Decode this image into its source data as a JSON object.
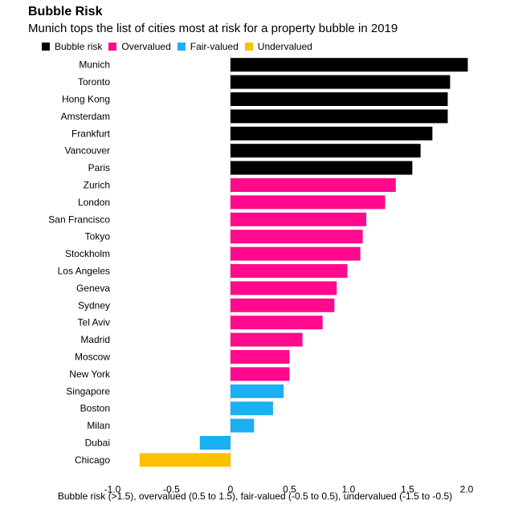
{
  "chart_data": {
    "type": "bar",
    "orientation": "horizontal",
    "title": "Bubble Risk",
    "subtitle": "Munich tops the list of cities most at risk for a property bubble in 2019",
    "xlabel": "Bubble risk (>1.5), overvalued (0.5 to 1.5), fair-valued (-0.5 to 0.5), undervalued (-1.5 to -0.5)",
    "xlim": [
      -1.0,
      2.0
    ],
    "xticks": [
      "-1.0",
      "-0.5",
      "0",
      "0.5",
      "1.0",
      "1.5",
      "2.0"
    ],
    "xtick_values": [
      -1.0,
      -0.5,
      0,
      0.5,
      1.0,
      1.5,
      2.0
    ],
    "legend": [
      {
        "label": "Bubble risk",
        "color": "#000000"
      },
      {
        "label": "Overvalued",
        "color": "#ff0a8c"
      },
      {
        "label": "Fair-valued",
        "color": "#1bb0f0"
      },
      {
        "label": "Undervalued",
        "color": "#fcc000"
      }
    ],
    "categories": [
      "Munich",
      "Toronto",
      "Hong Kong",
      "Amsterdam",
      "Frankfurt",
      "Vancouver",
      "Paris",
      "Zurich",
      "London",
      "San Francisco",
      "Tokyo",
      "Stockholm",
      "Los Angeles",
      "Geneva",
      "Sydney",
      "Tel Aviv",
      "Madrid",
      "Moscow",
      "New York",
      "Singapore",
      "Boston",
      "Milan",
      "Dubai",
      "Chicago"
    ],
    "values": [
      2.01,
      1.86,
      1.84,
      1.84,
      1.71,
      1.61,
      1.54,
      1.4,
      1.31,
      1.15,
      1.12,
      1.1,
      0.99,
      0.9,
      0.88,
      0.78,
      0.61,
      0.5,
      0.5,
      0.45,
      0.36,
      0.2,
      -0.26,
      -0.77
    ],
    "bar_groups": [
      "Bubble risk",
      "Bubble risk",
      "Bubble risk",
      "Bubble risk",
      "Bubble risk",
      "Bubble risk",
      "Bubble risk",
      "Overvalued",
      "Overvalued",
      "Overvalued",
      "Overvalued",
      "Overvalued",
      "Overvalued",
      "Overvalued",
      "Overvalued",
      "Overvalued",
      "Overvalued",
      "Overvalued",
      "Overvalued",
      "Fair-valued",
      "Fair-valued",
      "Fair-valued",
      "Fair-valued",
      "Undervalued"
    ]
  }
}
